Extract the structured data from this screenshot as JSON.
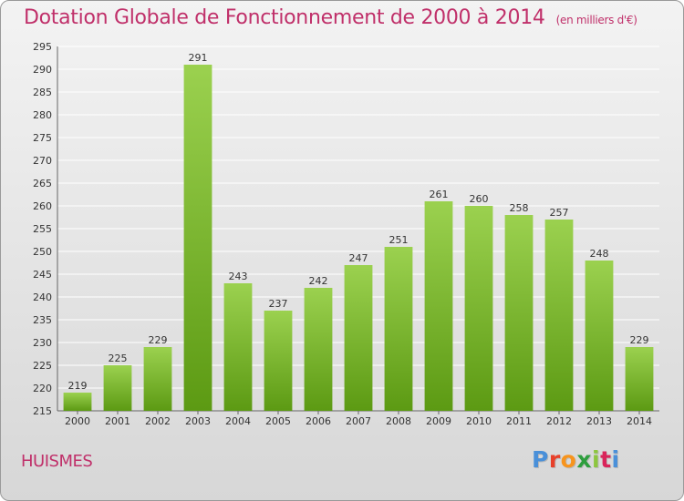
{
  "header": {
    "title": "Dotation Globale de Fonctionnement de 2000 à 2014",
    "subtitle": "(en milliers d'€)"
  },
  "footer": {
    "commune": "HUISMES",
    "logo": "Proxiti",
    "logo_colors": [
      "#4a90d9",
      "#e8402a",
      "#f7941d",
      "#2e9e3e",
      "#8dc63f",
      "#d9245a",
      "#4a90d9"
    ]
  },
  "colors": {
    "title": "#c0306a",
    "bar_top": "#9bd14f",
    "bar_bottom": "#5c9a13",
    "grid": "#ffffff"
  },
  "chart_data": {
    "type": "bar",
    "title": "Dotation Globale de Fonctionnement de 2000 à 2014",
    "subtitle": "(en milliers d'€)",
    "categories": [
      "2000",
      "2001",
      "2002",
      "2003",
      "2004",
      "2005",
      "2006",
      "2007",
      "2008",
      "2009",
      "2010",
      "2011",
      "2012",
      "2013",
      "2014"
    ],
    "values": [
      219,
      225,
      229,
      291,
      243,
      237,
      242,
      247,
      251,
      261,
      260,
      258,
      257,
      248,
      229
    ],
    "ylim": [
      215,
      295
    ],
    "yticks": [
      215,
      220,
      225,
      230,
      235,
      240,
      245,
      250,
      255,
      260,
      265,
      270,
      275,
      280,
      285,
      290,
      295
    ],
    "grid": true,
    "data_labels": true
  }
}
